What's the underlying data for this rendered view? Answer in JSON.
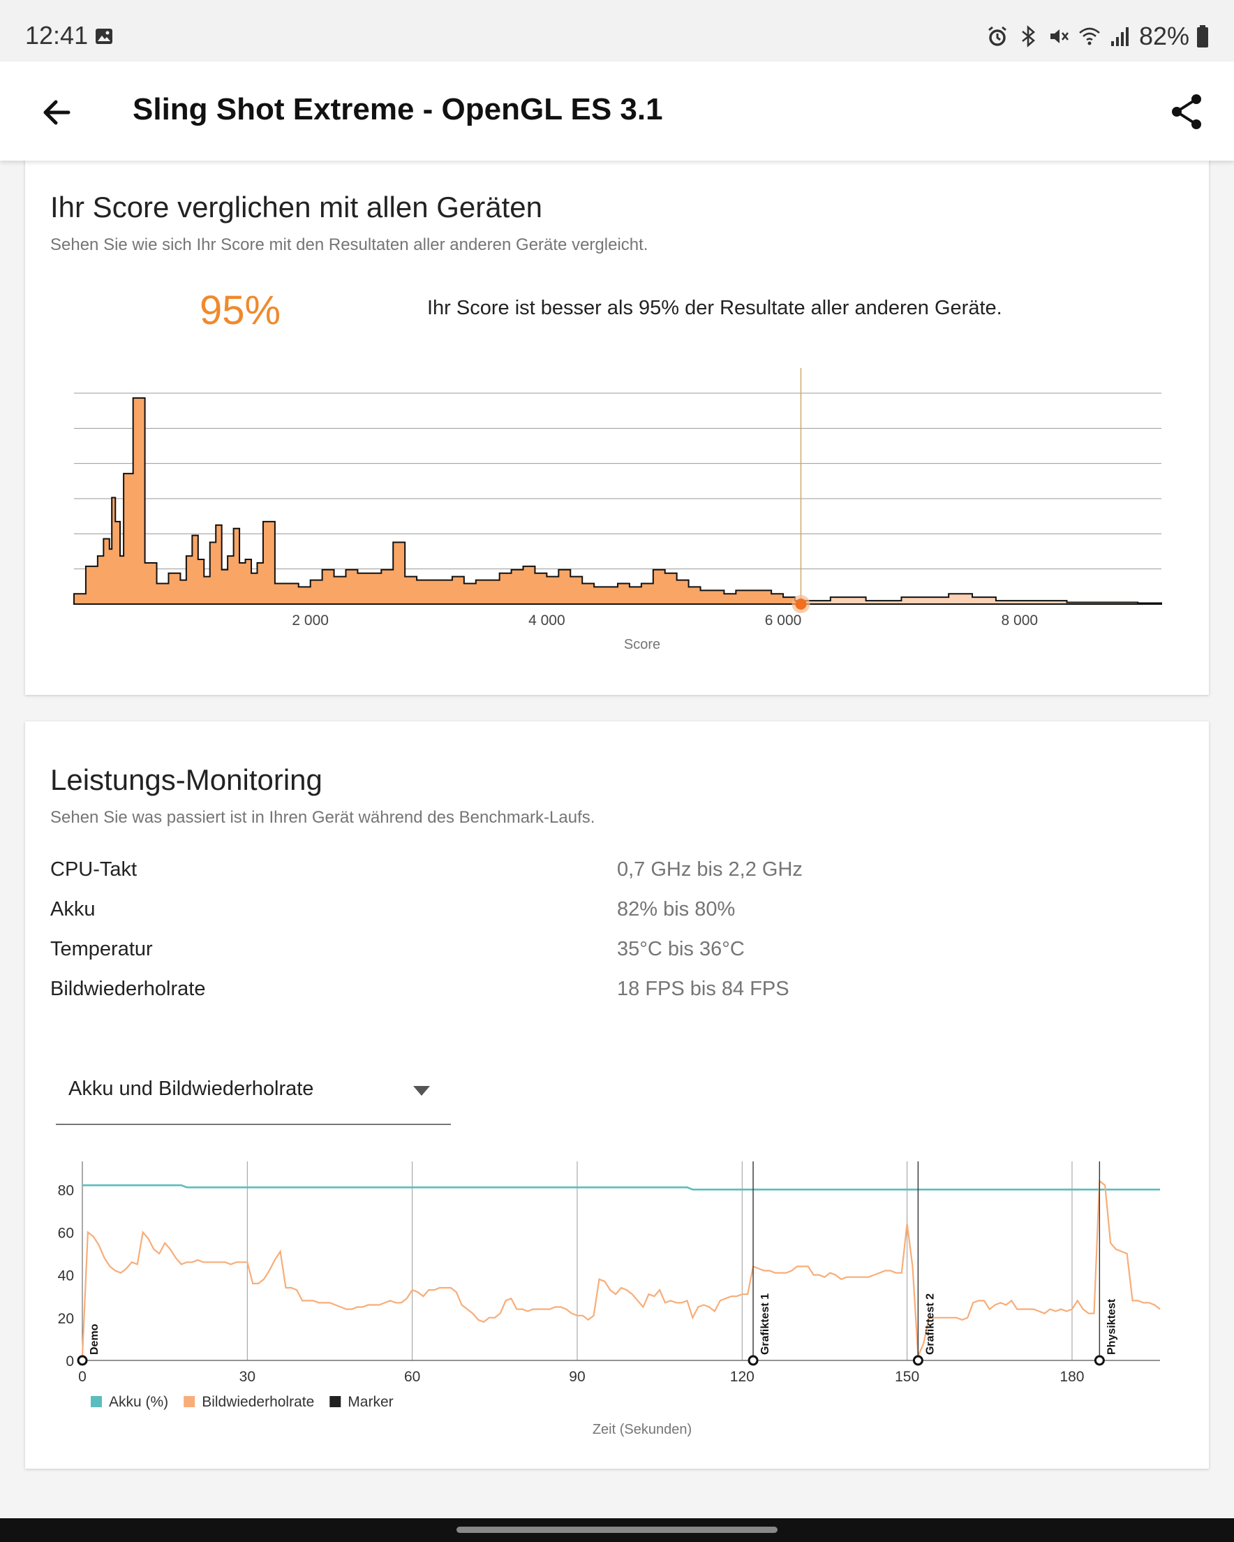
{
  "status_bar": {
    "time": "12:41",
    "battery": "82%",
    "icons": [
      "gallery-icon",
      "alarm-icon",
      "bluetooth-icon",
      "mute-icon",
      "wifi-icon",
      "signal-icon",
      "battery-icon"
    ]
  },
  "app_bar": {
    "title": "Sling Shot Extreme - OpenGL ES 3.1",
    "icons": [
      "back-arrow-icon",
      "share-icon"
    ]
  },
  "score_card": {
    "title": "Ihr Score verglichen mit allen Geräten",
    "subtitle": "Sehen Sie wie sich Ihr Score mit den Resultaten aller anderen Geräte vergleicht.",
    "percentile": "95%",
    "percentile_text": "Ihr Score ist besser als 95% der Resultate aller anderen Geräte.",
    "accent_color": "#f0892b"
  },
  "monitor_card": {
    "title": "Leistungs-Monitoring",
    "subtitle": "Sehen Sie was passiert ist in Ihren Gerät während des Benchmark-Laufs.",
    "rows": [
      {
        "label": "CPU-Takt",
        "value": "0,7 GHz bis 2,2 GHz"
      },
      {
        "label": "Akku",
        "value": "82% bis 80%"
      },
      {
        "label": "Temperatur",
        "value": "35°C bis 36°C"
      },
      {
        "label": "Bildwiederholrate",
        "value": "18 FPS bis 84 FPS"
      }
    ],
    "dropdown": {
      "selected": "Akku und Bildwiederholrate"
    }
  },
  "chart_data": [
    {
      "type": "area",
      "title": "",
      "xlabel": "Score",
      "ylabel": "",
      "xlim": [
        0,
        9200
      ],
      "x_ticks": [
        2000,
        4000,
        6000,
        8000
      ],
      "x_tick_labels": [
        "2 000",
        "4 000",
        "6 000",
        "8 000"
      ],
      "y_grid_lines": 6,
      "user_score": 6150,
      "series": [
        {
          "color": "#f8a565",
          "x": [
            0,
            100,
            200,
            250,
            300,
            320,
            350,
            390,
            400,
            420,
            450,
            500,
            550,
            600,
            700,
            800,
            900,
            900,
            950,
            1000,
            1050,
            1100,
            1150,
            1200,
            1250,
            1300,
            1350,
            1400,
            1450,
            1500,
            1550,
            1600,
            1700,
            1800,
            1900,
            2000,
            2100,
            2200,
            2300,
            2400,
            2500,
            2600,
            2700,
            2800,
            2900,
            3000,
            3100,
            3200,
            3300,
            3400,
            3500,
            3600,
            3700,
            3800,
            3900,
            4000,
            4100,
            4200,
            4300,
            4400,
            4500,
            4600,
            4700,
            4800,
            4900,
            5000,
            5100,
            5200,
            5300,
            5400,
            5500,
            5600,
            5700,
            5800,
            5900,
            6000,
            6100,
            6200,
            6300,
            6400,
            6500,
            6600,
            6700,
            6800,
            6900,
            7000,
            7100,
            7200,
            7300,
            7400,
            7500,
            7600,
            7800,
            8000,
            8200,
            8400,
            8600,
            8800,
            9000,
            9200
          ],
          "y": [
            3,
            11,
            14,
            19,
            16,
            31,
            24,
            14,
            14,
            38,
            38,
            60,
            60,
            12,
            6,
            9,
            7,
            7,
            14,
            20,
            13,
            8,
            18,
            23,
            10,
            14,
            22,
            12,
            13,
            9,
            12,
            24,
            6,
            6,
            5,
            7,
            10,
            8,
            10,
            9,
            9,
            10,
            18,
            8,
            7,
            7,
            7,
            8,
            6,
            7,
            7,
            9,
            10,
            11,
            9,
            8,
            10,
            8,
            6,
            5,
            5,
            6,
            5,
            6,
            10,
            9,
            7,
            5,
            4,
            4,
            3,
            4,
            4,
            4,
            3,
            2,
            1,
            1,
            1,
            2,
            2,
            2,
            1,
            1,
            1,
            2,
            2,
            2,
            2,
            3,
            3,
            2,
            1,
            1,
            1,
            0.5,
            0.5,
            0.5,
            0.3,
            0.2
          ],
          "highlight_from": 6150,
          "highlight_color": "#fbd2b5"
        }
      ]
    },
    {
      "type": "line",
      "title": "",
      "xlabel": "Zeit (Sekunden)",
      "ylabel": "",
      "xlim": [
        0,
        196
      ],
      "ylim": [
        0,
        85
      ],
      "x_ticks": [
        0,
        30,
        60,
        90,
        120,
        150,
        180
      ],
      "y_ticks": [
        0,
        20,
        40,
        60,
        80
      ],
      "legend": "bottom-left",
      "series": [
        {
          "name": "Akku (%)",
          "color": "#5bbdbd",
          "x": [
            0,
            18,
            19,
            110,
            111,
            196
          ],
          "y": [
            82,
            82,
            81,
            81,
            80,
            80
          ]
        },
        {
          "name": "Bildwiederholrate",
          "color": "#f8ad78",
          "x": [
            0,
            1,
            2,
            3,
            4,
            5,
            6,
            7,
            8,
            9,
            10,
            11,
            12,
            13,
            14,
            15,
            16,
            17,
            18,
            19,
            20,
            21,
            22,
            23,
            24,
            25,
            26,
            27,
            28,
            29,
            30,
            31,
            32,
            33,
            34,
            35,
            36,
            37,
            38,
            39,
            40,
            41,
            42,
            43,
            44,
            45,
            46,
            47,
            48,
            49,
            50,
            51,
            52,
            53,
            54,
            55,
            56,
            57,
            58,
            59,
            60,
            61,
            62,
            63,
            64,
            65,
            66,
            67,
            68,
            69,
            70,
            71,
            72,
            73,
            74,
            75,
            76,
            77,
            78,
            79,
            80,
            81,
            82,
            83,
            84,
            85,
            86,
            87,
            88,
            89,
            90,
            91,
            92,
            93,
            94,
            95,
            96,
            97,
            98,
            99,
            100,
            101,
            102,
            103,
            104,
            105,
            106,
            107,
            108,
            109,
            110,
            111,
            112,
            113,
            114,
            115,
            116,
            117,
            118,
            119,
            120,
            121,
            122,
            123,
            124,
            125,
            126,
            127,
            128,
            129,
            130,
            131,
            132,
            133,
            134,
            135,
            136,
            137,
            138,
            139,
            140,
            141,
            142,
            143,
            144,
            145,
            146,
            147,
            148,
            149,
            150,
            151,
            152,
            153,
            154,
            155,
            156,
            157,
            158,
            159,
            160,
            161,
            162,
            163,
            164,
            165,
            166,
            167,
            168,
            169,
            170,
            171,
            172,
            173,
            174,
            175,
            176,
            177,
            178,
            179,
            180,
            181,
            182,
            183,
            184,
            185,
            186,
            187,
            188,
            189,
            190,
            191,
            192,
            193,
            194,
            195,
            196
          ],
          "y": [
            2,
            60,
            58,
            54,
            48,
            44,
            42,
            41,
            43,
            46,
            45,
            60,
            57,
            52,
            50,
            55,
            52,
            48,
            45,
            46,
            46,
            47,
            46,
            46,
            46,
            46,
            46,
            45,
            46,
            46,
            46,
            36,
            36,
            38,
            42,
            47,
            51,
            34,
            34,
            33,
            28,
            28,
            28,
            27,
            27,
            27,
            26,
            25,
            24,
            24,
            25,
            25,
            26,
            26,
            26,
            27,
            28,
            27,
            27,
            29,
            33,
            32,
            30,
            33,
            33,
            34,
            34,
            34,
            32,
            26,
            24,
            22,
            19,
            18,
            20,
            20,
            22,
            28,
            29,
            24,
            24,
            23,
            24,
            24,
            24,
            24,
            25,
            25,
            24,
            22,
            21,
            21,
            19,
            21,
            38,
            37,
            33,
            31,
            34,
            33,
            31,
            28,
            25,
            31,
            30,
            33,
            27,
            28,
            27,
            27,
            28,
            20,
            25,
            26,
            25,
            23,
            28,
            29,
            30,
            30,
            31,
            31,
            44,
            43,
            42,
            42,
            41,
            41,
            41,
            42,
            44,
            44,
            44,
            40,
            40,
            39,
            41,
            40,
            38,
            39,
            39,
            39,
            39,
            39,
            40,
            41,
            42,
            42,
            41,
            41,
            64,
            44,
            2,
            8,
            20,
            20,
            20,
            20,
            20,
            20,
            19,
            20,
            27,
            28,
            28,
            24,
            26,
            27,
            26,
            28,
            24,
            24,
            24,
            24,
            23,
            22,
            24,
            23,
            24,
            23,
            24,
            28,
            24,
            22,
            22,
            84,
            82,
            55,
            52,
            51,
            50,
            28,
            28,
            27,
            27,
            26,
            24
          ]
        },
        {
          "name": "Marker",
          "color": "#212121",
          "type": "marker",
          "x": [
            0,
            122,
            152,
            185
          ],
          "labels": [
            "Demo",
            "Grafiktest 1",
            "Grafiktest 2",
            "Physiktest"
          ]
        }
      ]
    }
  ]
}
